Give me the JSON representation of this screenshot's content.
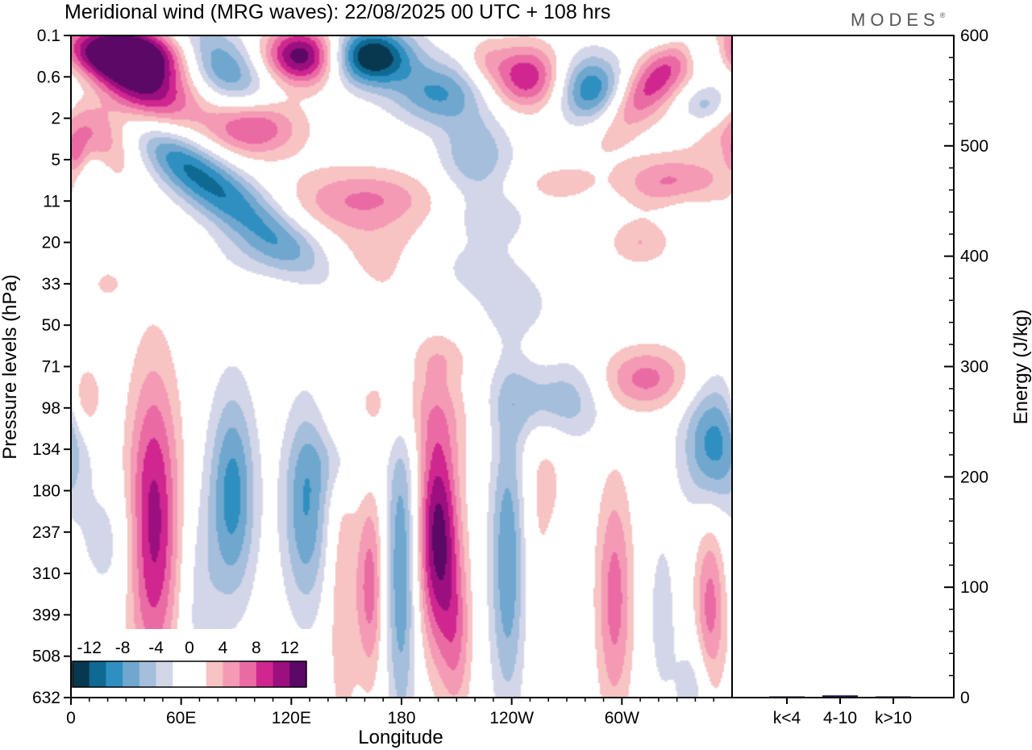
{
  "chart_data": {
    "type": "heatmap",
    "title": "Meridional wind (MRG waves):  22/08/2025  00 UTC  + 108 hrs",
    "brand": "MODES",
    "brand_mark": "®",
    "xlabel": "Longitude",
    "ylabel": "Pressure levels (hPa)",
    "x_ticks": [
      "0",
      "60E",
      "120E",
      "180",
      "120W",
      "60W"
    ],
    "x_range_deg": [
      0,
      360
    ],
    "y_ticks": [
      "0.1",
      "0.6",
      "2",
      "5",
      "11",
      "20",
      "33",
      "50",
      "71",
      "98",
      "134",
      "180",
      "237",
      "310",
      "399",
      "508",
      "632"
    ],
    "colorbar": {
      "tick_labels": [
        "-12",
        "-8",
        "-4",
        "0",
        "4",
        "8",
        "12"
      ],
      "colors": [
        "#08384f",
        "#0e6a93",
        "#2f8fc0",
        "#6fa7cf",
        "#a5bedc",
        "#d3d6e8",
        "#ffffff",
        "#ffffff",
        "#f7c3c3",
        "#f49ab5",
        "#ea6ba4",
        "#d02690",
        "#9c0f7f",
        "#5b0866"
      ]
    },
    "blobs": [
      {
        "lon": 30,
        "lev": 1.5,
        "dlon": 26,
        "dlev": 1.0,
        "amp": 16,
        "rot": -10
      },
      {
        "lon": 26,
        "lev": 0.4,
        "dlon": 28,
        "dlev": 0.45,
        "amp": 12,
        "rot": 0
      },
      {
        "lon": 50,
        "lev": 2.7,
        "dlon": 14,
        "dlev": 2.6,
        "amp": -12,
        "rot": 38
      },
      {
        "lon": 77,
        "lev": 0.6,
        "dlon": 16,
        "dlev": 0.9,
        "amp": -11,
        "rot": 30
      },
      {
        "lon": 12,
        "lev": 3.4,
        "dlon": 6,
        "dlev": 0.4,
        "amp": -4,
        "rot": 0
      },
      {
        "lon": 100,
        "lev": 2.2,
        "dlon": 18,
        "dlev": 0.5,
        "amp": 9,
        "rot": -20
      },
      {
        "lon": 126,
        "lev": 0.5,
        "dlon": 15,
        "dlev": 0.5,
        "amp": 14,
        "rot": 0
      },
      {
        "lon": 163,
        "lev": 0.5,
        "dlon": 16,
        "dlev": 0.5,
        "amp": -15,
        "rot": 0
      },
      {
        "lon": 140,
        "lev": 4.0,
        "dlon": 20,
        "dlev": 0.6,
        "amp": 3,
        "rot": 0
      },
      {
        "lon": 200,
        "lev": 1.4,
        "dlon": 18,
        "dlev": 0.55,
        "amp": -8,
        "rot": 0
      },
      {
        "lon": 220,
        "lev": 2.9,
        "dlon": 14,
        "dlev": 0.7,
        "amp": -6,
        "rot": 0
      },
      {
        "lon": 225,
        "lev": 0.6,
        "dlon": 8,
        "dlev": 0.4,
        "amp": 3,
        "rot": 0
      },
      {
        "lon": 248,
        "lev": 1.0,
        "dlon": 14,
        "dlev": 0.55,
        "amp": 10,
        "rot": 0
      },
      {
        "lon": 283,
        "lev": 1.3,
        "dlon": 13,
        "dlev": 0.6,
        "amp": -10,
        "rot": 0
      },
      {
        "lon": 318,
        "lev": 1.1,
        "dlon": 11,
        "dlev": 1.1,
        "amp": 9,
        "rot": -28
      },
      {
        "lon": 346,
        "lev": 1.7,
        "dlon": 10,
        "dlev": 0.35,
        "amp": -7,
        "rot": 0
      },
      {
        "lon": 345,
        "lev": 0.3,
        "dlon": 7,
        "dlev": 0.3,
        "amp": -4,
        "rot": 0
      },
      {
        "lon": 328,
        "lev": 3.6,
        "dlon": 20,
        "dlev": 0.45,
        "amp": 7,
        "rot": -15
      },
      {
        "lon": 3,
        "lev": 2.9,
        "dlon": 4,
        "dlev": 0.3,
        "amp": 3,
        "rot": 0
      },
      {
        "lon": 265,
        "lev": 3.6,
        "dlon": 14,
        "dlev": 0.3,
        "amp": 3,
        "rot": 0
      },
      {
        "lon": 110,
        "lev": 5.2,
        "dlon": 25,
        "dlev": 0.5,
        "amp": -2.5,
        "rot": 12
      },
      {
        "lon": 170,
        "lev": 5.4,
        "dlon": 28,
        "dlev": 1.3,
        "amp": 4,
        "rot": 0
      },
      {
        "lon": 170,
        "lev": 3.9,
        "dlon": 20,
        "dlev": 0.4,
        "amp": 3,
        "rot": 0
      },
      {
        "lon": 210,
        "lev": 5.6,
        "dlon": 25,
        "dlev": 0.7,
        "amp": -3.5,
        "rot": -15
      },
      {
        "lon": 230,
        "lev": 4.4,
        "dlon": 14,
        "dlev": 0.4,
        "amp": -3,
        "rot": 0
      },
      {
        "lon": 310,
        "lev": 5.0,
        "dlon": 12,
        "dlev": 0.4,
        "amp": 4,
        "rot": 0
      },
      {
        "lon": 335,
        "lev": 4.0,
        "dlon": 12,
        "dlev": 0.4,
        "amp": -2.5,
        "rot": 0
      },
      {
        "lon": 20,
        "lev": 6.0,
        "dlon": 7,
        "dlev": 0.3,
        "amp": 2.5,
        "rot": 0
      },
      {
        "lon": 246,
        "lev": 6.6,
        "dlon": 16,
        "dlev": 0.6,
        "amp": -3,
        "rot": 0
      },
      {
        "lon": 200,
        "lev": 7.8,
        "dlon": 12,
        "dlev": 0.4,
        "amp": 2.5,
        "rot": 0
      },
      {
        "lon": 260,
        "lev": 8.8,
        "dlon": 22,
        "dlev": 0.7,
        "amp": -7,
        "rot": 0
      },
      {
        "lon": 312,
        "lev": 8.3,
        "dlon": 18,
        "dlev": 0.55,
        "amp": 7,
        "rot": -20
      },
      {
        "lon": 350,
        "lev": 9.9,
        "dlon": 12,
        "dlev": 1.1,
        "amp": -9,
        "rot": 0
      },
      {
        "lon": 190,
        "lev": 9.0,
        "dlon": 30,
        "dlev": 0.8,
        "amp": 3,
        "rot": 0
      },
      {
        "lon": 8,
        "lev": 8.8,
        "dlon": 6,
        "dlev": 0.6,
        "amp": 5,
        "rot": 0
      },
      {
        "lon": 45,
        "lev": 11.8,
        "dlon": 10,
        "dlev": 2.6,
        "amp": 11,
        "rot": 0
      },
      {
        "lon": 88,
        "lev": 11.1,
        "dlon": 9,
        "dlev": 1.8,
        "amp": -9,
        "rot": 0
      },
      {
        "lon": 128,
        "lev": 11.4,
        "dlon": 9,
        "dlev": 1.8,
        "amp": -8,
        "rot": 0
      },
      {
        "lon": 148,
        "lev": 13.6,
        "dlon": 6,
        "dlev": 2.4,
        "amp": 4,
        "rot": 0
      },
      {
        "lon": 163,
        "lev": 13.3,
        "dlon": 5,
        "dlev": 1.6,
        "amp": 7,
        "rot": 0
      },
      {
        "lon": 180,
        "lev": 12.9,
        "dlon": 6,
        "dlev": 2.8,
        "amp": -8,
        "rot": 0
      },
      {
        "lon": 200,
        "lev": 12.1,
        "dlon": 8,
        "dlev": 1.9,
        "amp": 13,
        "rot": 0
      },
      {
        "lon": 210,
        "lev": 14.6,
        "dlon": 6,
        "dlev": 1.4,
        "amp": 5,
        "rot": 0
      },
      {
        "lon": 238,
        "lev": 12.7,
        "dlon": 7,
        "dlev": 2.5,
        "amp": -8,
        "rot": 0
      },
      {
        "lon": 258,
        "lev": 11.0,
        "dlon": 9,
        "dlev": 2.6,
        "amp": 3,
        "rot": 0
      },
      {
        "lon": 265,
        "lev": 13.6,
        "dlon": 6,
        "dlev": 1.2,
        "amp": -3,
        "rot": 0
      },
      {
        "lon": 296,
        "lev": 13.6,
        "dlon": 7,
        "dlev": 2.0,
        "amp": 7,
        "rot": 0
      },
      {
        "lon": 322,
        "lev": 14.0,
        "dlon": 6,
        "dlev": 1.6,
        "amp": -3,
        "rot": 0
      },
      {
        "lon": 348,
        "lev": 13.9,
        "dlon": 6,
        "dlev": 1.6,
        "amp": 7,
        "rot": 0
      },
      {
        "lon": 20,
        "lev": 12.3,
        "dlon": 12,
        "dlev": 1.0,
        "amp": -3,
        "rot": 0
      },
      {
        "lon": 70,
        "lev": 13.8,
        "dlon": 8,
        "dlev": 1.9,
        "amp": -3,
        "rot": 0
      },
      {
        "lon": 148,
        "lev": 10.3,
        "dlon": 12,
        "dlev": 0.6,
        "amp": -3,
        "rot": 0
      },
      {
        "lon": 340,
        "lev": 15.8,
        "dlon": 7,
        "dlev": 0.9,
        "amp": -4,
        "rot": 0
      },
      {
        "lon": 8,
        "lev": 15.3,
        "dlon": 5,
        "dlev": 1.1,
        "amp": 3,
        "rot": 0
      },
      {
        "lon": 113,
        "lev": 16.0,
        "dlon": 6,
        "dlev": 0.7,
        "amp": 3,
        "rot": 0
      }
    ],
    "energy_panel": {
      "ylabel": "Energy (J/kg)",
      "yrange": [
        0,
        600
      ],
      "yticks": [
        0,
        100,
        200,
        300,
        400,
        500,
        600
      ],
      "categories": [
        "k<4",
        "4-10",
        "k>10"
      ],
      "values": [
        1,
        2,
        0.5
      ],
      "bar_color": "#1a1d4a"
    }
  }
}
